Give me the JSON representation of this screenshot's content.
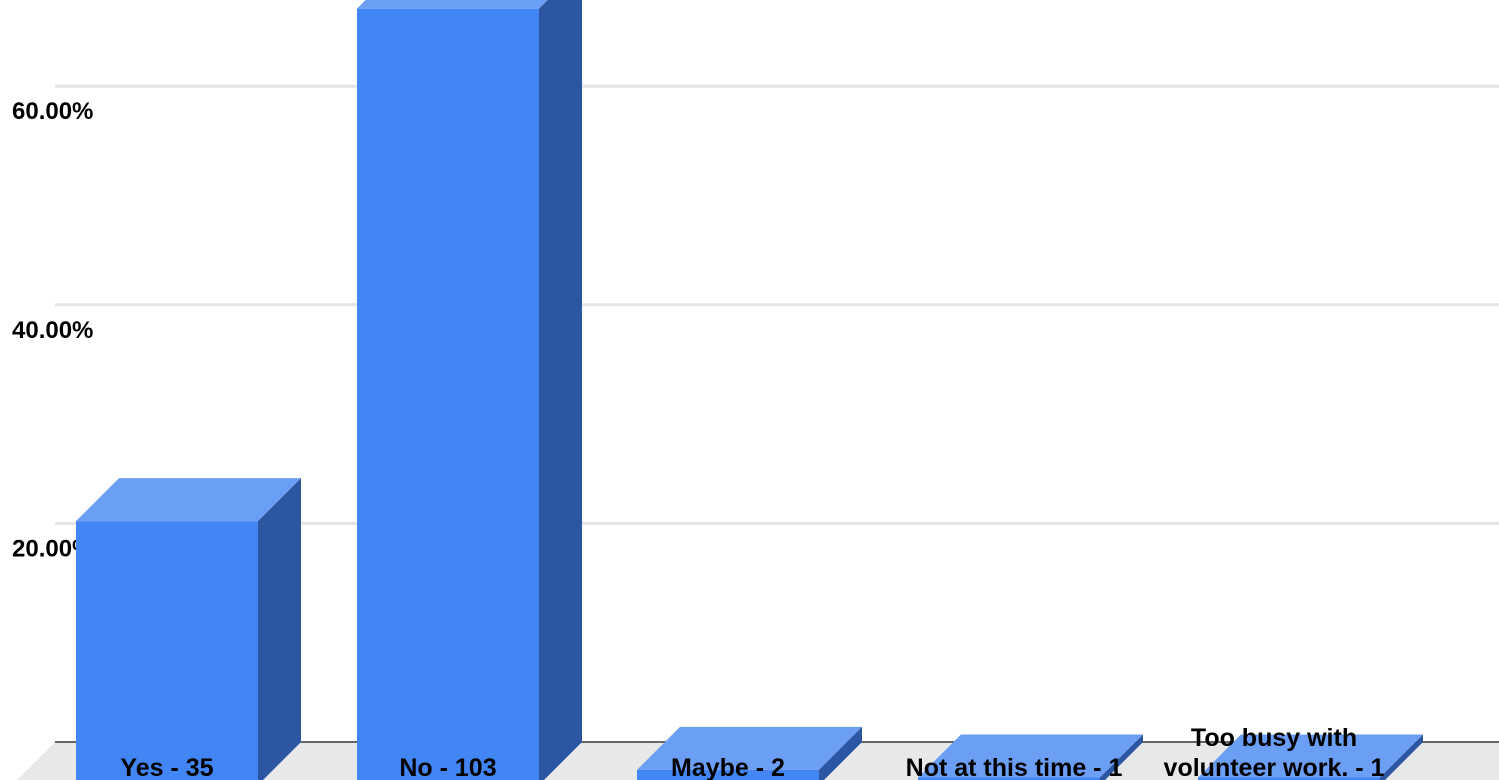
{
  "chart_data": {
    "type": "bar",
    "title": "",
    "xlabel": "",
    "ylabel": "",
    "categories": [
      [
        "Yes - 35"
      ],
      [
        "No - 103"
      ],
      [
        "Maybe - 2"
      ],
      [
        "Not at this time - 1"
      ],
      [
        "Too busy with",
        "volunteer work. - 1"
      ]
    ],
    "values": [
      24.14,
      71.03,
      1.38,
      0.69,
      0.69
    ],
    "ylim": [
      0,
      75
    ],
    "yticks": [
      20,
      40,
      60
    ],
    "ytick_labels": [
      "20.00%",
      "40.00%",
      "60.00%"
    ],
    "grid": true,
    "legend": "none",
    "colors": {
      "bar_front": "#4285f4",
      "bar_top": "#6b9ef5",
      "bar_side": "#2c56a2",
      "grid": "#e4e4e4",
      "floor": "#e8e8e8",
      "baseline": "#666666"
    }
  }
}
